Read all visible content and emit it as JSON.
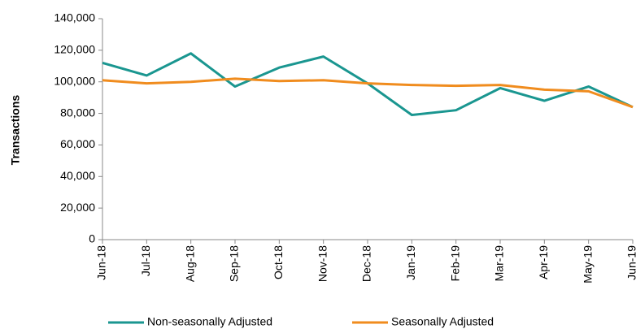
{
  "chart_data": {
    "type": "line",
    "y_label": "Transactions",
    "categories": [
      "Jun-18",
      "Jul-18",
      "Aug-18",
      "Sep-18",
      "Oct-18",
      "Nov-18",
      "Dec-18",
      "Jan-19",
      "Feb-19",
      "Mar-19",
      "Apr-19",
      "May-19",
      "Jun-19"
    ],
    "series": [
      {
        "name": "Non-seasonally Adjusted",
        "color": "#1a9690",
        "values": [
          112000,
          104000,
          118000,
          97000,
          109000,
          116000,
          99000,
          79000,
          82000,
          96000,
          88000,
          97000,
          84000
        ]
      },
      {
        "name": "Seasonally Adjusted",
        "color": "#f08c1e",
        "values": [
          101000,
          99000,
          100000,
          102000,
          100500,
          101000,
          99000,
          98000,
          97500,
          98000,
          95000,
          94000,
          84000
        ]
      }
    ],
    "ylim": [
      0,
      140000
    ],
    "yticks": [
      0,
      {
        "value": 20000,
        "label": "20,000"
      },
      {
        "value": 40000,
        "label": "40,000"
      },
      {
        "value": 60000,
        "label": "60,000"
      },
      {
        "value": 80000,
        "label": "80,000"
      },
      {
        "value": 100000,
        "label": "100,000"
      },
      {
        "value": 120000,
        "label": "120,000"
      },
      {
        "value": 140000,
        "label": "140,000"
      }
    ],
    "grid": false,
    "legend": "bottom"
  }
}
